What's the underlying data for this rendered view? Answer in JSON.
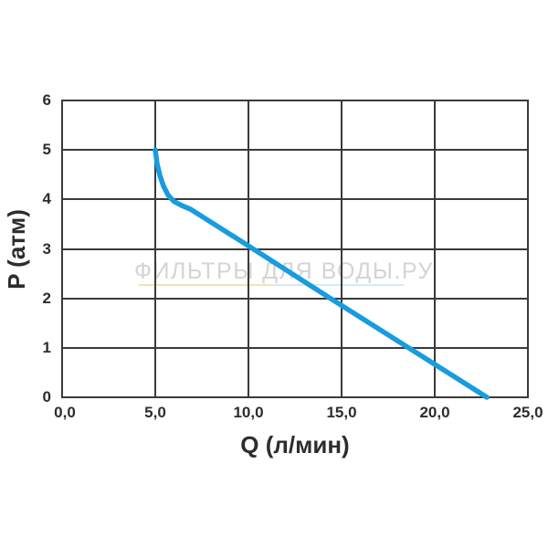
{
  "chart_data": {
    "type": "line",
    "title": "",
    "xlabel": "Q (л/мин)",
    "ylabel": "P (атм)",
    "x_ticks": [
      "0,0",
      "5,0",
      "10,0",
      "15,0",
      "20,0",
      "25,0"
    ],
    "y_ticks": [
      "6",
      "5",
      "4",
      "3",
      "2",
      "1",
      "0"
    ],
    "xlim": [
      0,
      25
    ],
    "ylim": [
      0,
      6
    ],
    "grid": true,
    "legend_position": "none",
    "grid_color": "#3a3a3a",
    "text_color": "#2d2d2d",
    "series": [
      {
        "name": "pump-pressure-vs-flow-curve",
        "color": "#189CDF",
        "points": [
          [
            5.0,
            5.0
          ],
          [
            5.1,
            4.72
          ],
          [
            5.25,
            4.48
          ],
          [
            5.45,
            4.26
          ],
          [
            5.7,
            4.08
          ],
          [
            6.0,
            3.96
          ],
          [
            6.4,
            3.88
          ],
          [
            6.9,
            3.8
          ],
          [
            10.0,
            3.06
          ],
          [
            14.4,
            2.0
          ],
          [
            18.6,
            1.0
          ],
          [
            22.8,
            0.0
          ]
        ]
      }
    ]
  },
  "watermark": {
    "text": "ФИЛЬТРЫ ДЛЯ ВОДЫ.РУ",
    "color": "#d4d4d4",
    "underline_left_color": "#f9dfba",
    "underline_right_color": "#d9e6f7"
  }
}
